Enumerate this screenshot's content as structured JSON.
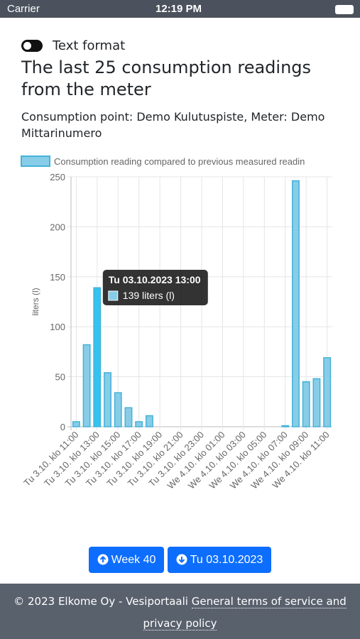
{
  "status_bar": {
    "carrier": "Carrier",
    "time": "12:19 PM"
  },
  "toggle_label": "Text format",
  "title": "The last 25 consumption readings from the meter",
  "subtitle": "Consumption point: Demo Kulutuspiste, Meter: Demo Mittarinumero",
  "chart_data": {
    "type": "bar",
    "ylabel": "liters (l)",
    "categories": [
      "Tu 3.10. klo 11:00",
      null,
      "Tu 3.10. klo 13:00",
      null,
      "Tu 3.10. klo 15:00",
      null,
      "Tu 3.10. klo 17:00",
      null,
      "Tu 3.10. klo 19:00",
      null,
      "Tu 3.10. klo 21:00",
      null,
      "Tu 3.10. klo 23:00",
      null,
      "We 4.10. klo 01:00",
      null,
      "We 4.10. klo 03:00",
      null,
      "We 4.10. klo 05:00",
      null,
      "We 4.10. klo 07:00",
      null,
      "We 4.10. klo 09:00",
      null,
      "We 4.10. klo 11:00"
    ],
    "series": [
      {
        "name": "Consumption reading compared to previous measured readin",
        "color": "#87cde8",
        "values": [
          5,
          82,
          139,
          54,
          34,
          19,
          5,
          11,
          0,
          0,
          0,
          0,
          0,
          0,
          0,
          0,
          0,
          0,
          0,
          0,
          1,
          246,
          45,
          48,
          69
        ]
      }
    ],
    "ylim": [
      0,
      250
    ],
    "yticks": [
      0,
      50,
      100,
      150,
      200,
      250
    ],
    "grid": true,
    "legend": "top",
    "tooltip": {
      "index": 2,
      "title": "Tu 03.10.2023 13:00",
      "label": "139 liters (l)"
    }
  },
  "buttons": [
    "Week 40",
    "Tu 03.10.2023"
  ],
  "footer": {
    "copyright": "© 2023 Elkome Oy - Vesiportaali",
    "link": "General terms of service and privacy policy"
  }
}
